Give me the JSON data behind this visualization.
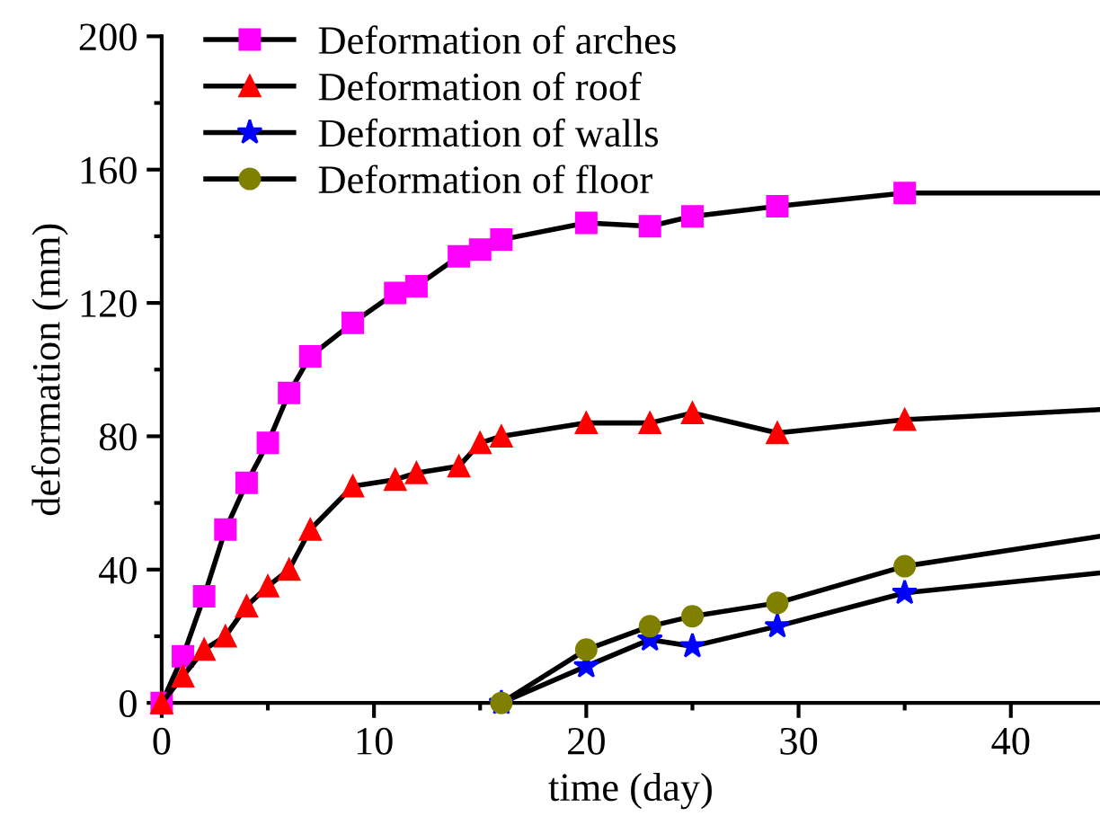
{
  "chart_data": {
    "type": "line",
    "xlabel": "time (day)",
    "ylabel": "deformation (mm)",
    "xlim": [
      0,
      44.2
    ],
    "xticks": [
      0,
      10,
      20,
      30,
      40
    ],
    "ylim": [
      0,
      200
    ],
    "yticks": [
      0,
      40,
      80,
      120,
      160,
      200
    ],
    "grid": false,
    "legend": "top left",
    "line_style": "solid",
    "series": [
      {
        "name": "Deformation of arches",
        "color": "#ff00ff",
        "marker": "square",
        "x": [
          0,
          1,
          2,
          3,
          4,
          5,
          6,
          7,
          9,
          11,
          12,
          14,
          15,
          16,
          20,
          23,
          25,
          29,
          35,
          44.2
        ],
        "values": [
          0,
          14,
          32,
          52,
          66,
          78,
          93,
          104,
          114,
          123,
          125,
          134,
          136,
          139,
          144,
          143,
          146,
          149,
          153,
          153
        ]
      },
      {
        "name": "Deformation of roof",
        "color": "#ff0000",
        "marker": "triangle",
        "x": [
          0,
          1,
          2,
          3,
          4,
          5,
          6,
          7,
          9,
          11,
          12,
          14,
          15,
          16,
          20,
          23,
          25,
          29,
          35,
          44.2
        ],
        "values": [
          0,
          8,
          16,
          20,
          29,
          35,
          40,
          52,
          65,
          67,
          69,
          71,
          78,
          80,
          84,
          84,
          87,
          81,
          85,
          88
        ]
      },
      {
        "name": "Deformation of walls",
        "color": "#0000ff",
        "marker": "star",
        "x": [
          16,
          20,
          23,
          25,
          29,
          35,
          44.2
        ],
        "values": [
          0,
          11,
          19,
          17,
          23,
          33,
          39
        ]
      },
      {
        "name": "Deformation of floor",
        "color": "#808000",
        "marker": "circle",
        "x": [
          16,
          20,
          23,
          25,
          29,
          35,
          44.2
        ],
        "values": [
          0,
          16,
          23,
          26,
          30,
          41,
          50
        ]
      }
    ]
  }
}
